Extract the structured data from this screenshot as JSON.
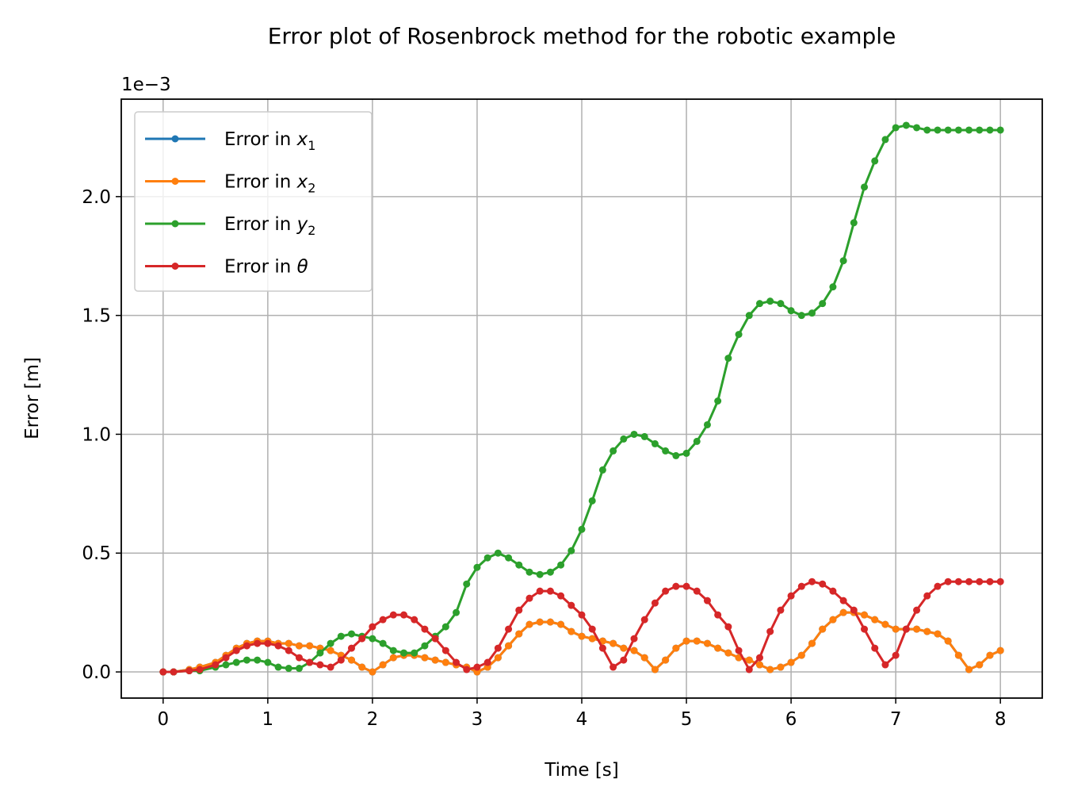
{
  "chart_data": {
    "type": "line",
    "title": "Error plot of Rosenbrock method for the robotic example",
    "xlabel": "Time [s]",
    "ylabel": "Error [m]",
    "y_scale_text": "1e−3",
    "xlim": [
      -0.4,
      8.4
    ],
    "ylim": [
      -0.00011,
      0.00241
    ],
    "x_ticks": [
      0,
      1,
      2,
      3,
      4,
      5,
      6,
      7,
      8
    ],
    "x_tick_labels": [
      "0",
      "1",
      "2",
      "3",
      "4",
      "5",
      "6",
      "7",
      "8"
    ],
    "y_ticks": [
      0,
      0.0005,
      0.001,
      0.0015,
      0.002
    ],
    "y_tick_labels": [
      "0.0",
      "0.5",
      "1.0",
      "1.5",
      "2.0"
    ],
    "grid": true,
    "legend_position": "upper-left",
    "x": [
      0,
      0.1,
      0.25,
      0.35,
      0.5,
      0.6,
      0.7,
      0.8,
      0.9,
      1.0,
      1.1,
      1.2,
      1.3,
      1.4,
      1.5,
      1.6,
      1.7,
      1.8,
      1.9,
      2.0,
      2.1,
      2.2,
      2.3,
      2.4,
      2.5,
      2.6,
      2.7,
      2.8,
      2.9,
      3.0,
      3.1,
      3.2,
      3.3,
      3.4,
      3.5,
      3.6,
      3.7,
      3.8,
      3.9,
      4.0,
      4.1,
      4.2,
      4.3,
      4.4,
      4.5,
      4.6,
      4.7,
      4.8,
      4.9,
      5.0,
      5.1,
      5.2,
      5.3,
      5.4,
      5.5,
      5.6,
      5.7,
      5.8,
      5.9,
      6.0,
      6.1,
      6.2,
      6.3,
      6.4,
      6.5,
      6.6,
      6.7,
      6.8,
      6.9,
      7.0,
      7.1,
      7.2,
      7.3,
      7.4,
      7.5,
      7.6,
      7.7,
      7.8,
      7.9,
      8.0
    ],
    "series": [
      {
        "name": "Error in x₁",
        "legend_base": "Error in ",
        "legend_math": "x",
        "legend_sub": "1",
        "color": "#1f77b4",
        "values": [
          0,
          0,
          1e-05,
          2e-05,
          4e-05,
          7e-05,
          0.0001,
          0.00012,
          0.00013,
          0.00013,
          0.00012,
          0.00012,
          0.00011,
          0.00011,
          0.0001,
          9e-05,
          7e-05,
          5e-05,
          2e-05,
          0.0,
          3e-05,
          6e-05,
          7e-05,
          7e-05,
          6e-05,
          5e-05,
          4e-05,
          3e-05,
          2e-05,
          0.0,
          2e-05,
          6e-05,
          0.00011,
          0.00016,
          0.0002,
          0.00021,
          0.00021,
          0.0002,
          0.00017,
          0.00015,
          0.00014,
          0.00013,
          0.00012,
          0.0001,
          9e-05,
          6e-05,
          1e-05,
          5e-05,
          0.0001,
          0.00013,
          0.00013,
          0.00012,
          0.0001,
          8e-05,
          6e-05,
          5e-05,
          3e-05,
          1e-05,
          2e-05,
          4e-05,
          7e-05,
          0.00012,
          0.00018,
          0.00022,
          0.00025,
          0.00025,
          0.00024,
          0.00022,
          0.0002,
          0.00018,
          0.00018,
          0.00018,
          0.00017,
          0.00016,
          0.00013,
          7e-05,
          1e-05,
          3e-05,
          7e-05,
          9e-05
        ]
      },
      {
        "name": "Error in x₂",
        "legend_base": "Error in ",
        "legend_math": "x",
        "legend_sub": "2",
        "color": "#ff7f0e",
        "values": [
          0,
          0,
          1e-05,
          2e-05,
          4e-05,
          7e-05,
          0.0001,
          0.00012,
          0.00013,
          0.00013,
          0.00012,
          0.00012,
          0.00011,
          0.00011,
          0.0001,
          9e-05,
          7e-05,
          5e-05,
          2e-05,
          0.0,
          3e-05,
          6e-05,
          7e-05,
          7e-05,
          6e-05,
          5e-05,
          4e-05,
          3e-05,
          2e-05,
          0.0,
          2e-05,
          6e-05,
          0.00011,
          0.00016,
          0.0002,
          0.00021,
          0.00021,
          0.0002,
          0.00017,
          0.00015,
          0.00014,
          0.00013,
          0.00012,
          0.0001,
          9e-05,
          6e-05,
          1e-05,
          5e-05,
          0.0001,
          0.00013,
          0.00013,
          0.00012,
          0.0001,
          8e-05,
          6e-05,
          5e-05,
          3e-05,
          1e-05,
          2e-05,
          4e-05,
          7e-05,
          0.00012,
          0.00018,
          0.00022,
          0.00025,
          0.00025,
          0.00024,
          0.00022,
          0.0002,
          0.00018,
          0.00018,
          0.00018,
          0.00017,
          0.00016,
          0.00013,
          7e-05,
          1e-05,
          3e-05,
          7e-05,
          9e-05
        ]
      },
      {
        "name": "Error in y₂",
        "legend_base": "Error in ",
        "legend_math": "y",
        "legend_sub": "2",
        "color": "#2ca02c",
        "values": [
          0,
          0,
          5e-06,
          5e-06,
          2e-05,
          3e-05,
          4e-05,
          5e-05,
          5e-05,
          4e-05,
          2e-05,
          1.5e-05,
          1.5e-05,
          4e-05,
          8e-05,
          0.00012,
          0.00015,
          0.00016,
          0.00015,
          0.00014,
          0.00012,
          9e-05,
          8e-05,
          8e-05,
          0.00011,
          0.00015,
          0.00019,
          0.00025,
          0.00037,
          0.00044,
          0.00048,
          0.0005,
          0.00048,
          0.00045,
          0.00042,
          0.00041,
          0.00042,
          0.00045,
          0.00051,
          0.0006,
          0.00072,
          0.00085,
          0.00093,
          0.00098,
          0.001,
          0.00099,
          0.00096,
          0.00093,
          0.00091,
          0.00092,
          0.00097,
          0.00104,
          0.00114,
          0.00132,
          0.00142,
          0.0015,
          0.00155,
          0.00156,
          0.00155,
          0.00152,
          0.0015,
          0.00151,
          0.00155,
          0.00162,
          0.00173,
          0.00189,
          0.00204,
          0.00215,
          0.00224,
          0.00229,
          0.0023,
          0.00229,
          0.00228,
          0.00228,
          0.00228,
          0.00228,
          0.00228,
          0.00228,
          0.00228,
          0.00228
        ]
      },
      {
        "name": "Error in θ",
        "legend_base": "Error in ",
        "legend_math": "θ",
        "legend_sub": "",
        "color": "#d62728",
        "values": [
          0,
          0,
          5e-06,
          1e-05,
          3e-05,
          6e-05,
          9e-05,
          0.00011,
          0.00012,
          0.00012,
          0.00011,
          9e-05,
          6e-05,
          4e-05,
          3e-05,
          2e-05,
          5e-05,
          0.0001,
          0.00014,
          0.00019,
          0.00022,
          0.00024,
          0.00024,
          0.00022,
          0.00018,
          0.00014,
          9e-05,
          4e-05,
          1e-05,
          2e-05,
          4e-05,
          0.0001,
          0.00018,
          0.00026,
          0.00031,
          0.00034,
          0.00034,
          0.00032,
          0.00028,
          0.00024,
          0.00018,
          0.0001,
          2e-05,
          5e-05,
          0.00014,
          0.00022,
          0.00029,
          0.00034,
          0.00036,
          0.00036,
          0.00034,
          0.0003,
          0.00024,
          0.00019,
          9e-05,
          1e-05,
          6e-05,
          0.00017,
          0.00026,
          0.00032,
          0.00036,
          0.00038,
          0.00037,
          0.00034,
          0.0003,
          0.00026,
          0.00018,
          0.0001,
          3e-05,
          7e-05,
          0.00018,
          0.00026,
          0.00032,
          0.00036,
          0.00038,
          0.00038,
          0.00038,
          0.00038,
          0.00038,
          0.00038
        ]
      }
    ]
  }
}
